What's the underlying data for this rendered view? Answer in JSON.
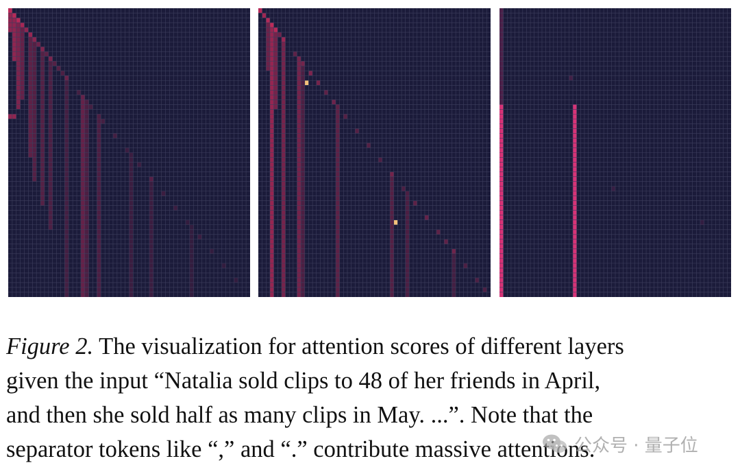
{
  "figure": {
    "panels": [
      {
        "id": "hm1",
        "grid": 60,
        "colors": {
          "background": "#1b1b3a",
          "grid": "#3e3f5e",
          "line": "#c02a5a",
          "hot": "#f5c27a"
        },
        "diagonal_cells": [
          [
            0,
            0,
            0.95
          ],
          [
            1,
            1,
            0.8
          ],
          [
            2,
            2,
            0.85
          ],
          [
            3,
            3,
            0.7
          ],
          [
            4,
            4,
            0.7
          ],
          [
            5,
            5,
            0.6
          ],
          [
            6,
            6,
            0.5
          ],
          [
            7,
            7,
            0.5
          ],
          [
            8,
            8,
            0.4
          ],
          [
            9,
            9,
            0.4
          ],
          [
            10,
            10,
            0.4
          ],
          [
            11,
            11,
            0.35
          ],
          [
            12,
            12,
            0.35
          ],
          [
            13,
            13,
            0.3
          ],
          [
            14,
            14,
            0.3
          ],
          [
            17,
            17,
            0.25
          ],
          [
            20,
            20,
            0.25
          ],
          [
            23,
            23,
            0.25
          ],
          [
            26,
            26,
            0.25
          ],
          [
            29,
            29,
            0.2
          ],
          [
            32,
            32,
            0.2
          ],
          [
            35,
            35,
            0.2
          ],
          [
            38,
            38,
            0.2
          ],
          [
            41,
            41,
            0.2
          ],
          [
            44,
            44,
            0.15
          ],
          [
            47,
            47,
            0.2
          ],
          [
            50,
            50,
            0.15
          ],
          [
            53,
            53,
            0.15
          ],
          [
            56,
            56,
            0.15
          ]
        ],
        "column_streaks": [
          [
            0,
            0,
            4,
            0.7
          ],
          [
            1,
            1,
            10,
            0.7
          ],
          [
            2,
            2,
            20,
            0.6
          ],
          [
            3,
            3,
            18,
            0.45
          ],
          [
            5,
            5,
            30,
            0.4
          ],
          [
            6,
            6,
            35,
            0.35
          ],
          [
            8,
            8,
            40,
            0.35
          ],
          [
            10,
            10,
            45,
            0.3
          ],
          [
            14,
            14,
            59,
            0.25
          ],
          [
            18,
            18,
            59,
            0.45
          ],
          [
            19,
            19,
            59,
            0.3
          ],
          [
            22,
            22,
            59,
            0.3
          ],
          [
            30,
            30,
            59,
            0.2
          ],
          [
            35,
            35,
            59,
            0.2
          ],
          [
            45,
            45,
            59,
            0.15
          ]
        ],
        "row_streaks": [
          [
            22,
            0,
            1,
            0.7
          ]
        ]
      },
      {
        "id": "hm2",
        "grid": 60,
        "colors": {
          "background": "#1b1b3a",
          "grid": "#3e3f5e",
          "line": "#c02a5a",
          "hot": "#f5c27a"
        },
        "diagonal_cells": [
          [
            0,
            0,
            0.95
          ],
          [
            1,
            1,
            0.8
          ],
          [
            2,
            2,
            0.85
          ],
          [
            3,
            3,
            0.95
          ],
          [
            4,
            4,
            0.9
          ],
          [
            5,
            5,
            0.5
          ],
          [
            6,
            6,
            0.5
          ],
          [
            9,
            9,
            0.4
          ],
          [
            11,
            11,
            0.35
          ],
          [
            13,
            13,
            0.6
          ],
          [
            15,
            15,
            0.55
          ],
          [
            17,
            17,
            0.4
          ],
          [
            19,
            19,
            0.5
          ],
          [
            22,
            22,
            0.35
          ],
          [
            25,
            25,
            0.35
          ],
          [
            28,
            28,
            0.35
          ],
          [
            31,
            31,
            0.3
          ],
          [
            34,
            34,
            0.3
          ],
          [
            37,
            37,
            0.3
          ],
          [
            40,
            40,
            0.4
          ],
          [
            43,
            43,
            0.45
          ],
          [
            46,
            46,
            0.4
          ],
          [
            48,
            48,
            0.4
          ],
          [
            50,
            50,
            0.35
          ],
          [
            53,
            53,
            0.3
          ],
          [
            56,
            56,
            0.3
          ],
          [
            58,
            58,
            0.3
          ]
        ],
        "column_streaks": [
          [
            3,
            3,
            59,
            0.75
          ],
          [
            4,
            4,
            20,
            0.55
          ],
          [
            6,
            6,
            59,
            0.55
          ],
          [
            10,
            10,
            59,
            0.55
          ],
          [
            2,
            2,
            12,
            0.5
          ],
          [
            11,
            11,
            59,
            0.3
          ],
          [
            20,
            20,
            59,
            0.4
          ],
          [
            34,
            34,
            59,
            0.35
          ],
          [
            38,
            38,
            59,
            0.3
          ],
          [
            50,
            50,
            59,
            0.25
          ]
        ],
        "row_streaks": [],
        "hot_cells": [
          [
            15,
            12
          ],
          [
            44,
            35
          ]
        ]
      },
      {
        "id": "hm3",
        "grid": 60,
        "colors": {
          "background": "#1b1b3a",
          "grid": "#3e3f5e",
          "line": "#e0357a",
          "hot": "#f5c27a"
        },
        "diagonal_cells": [],
        "column_streaks": [
          [
            0,
            0,
            19,
            0.25
          ],
          [
            0,
            20,
            59,
            0.95
          ],
          [
            19,
            20,
            59,
            0.95
          ]
        ],
        "row_streaks": [],
        "hot_cells": [],
        "faint_cells": [
          [
            14,
            18,
            0.2
          ],
          [
            37,
            29,
            0.15
          ],
          [
            44,
            52,
            0.12
          ]
        ]
      }
    ],
    "caption": {
      "figure_label": "Figure 2.",
      "line1_rest": " The visualization for attention scores of different layers",
      "line2": "given the input “Natalia sold clips to 48 of her friends in April,",
      "line3": "and then she sold half as many clips in May.  ...”. Note that the",
      "line4": "separator tokens like “,” and “.” contribute massive attentions."
    }
  },
  "watermark": {
    "icon": "wechat-icon",
    "text": "公众号 · 量子位"
  }
}
